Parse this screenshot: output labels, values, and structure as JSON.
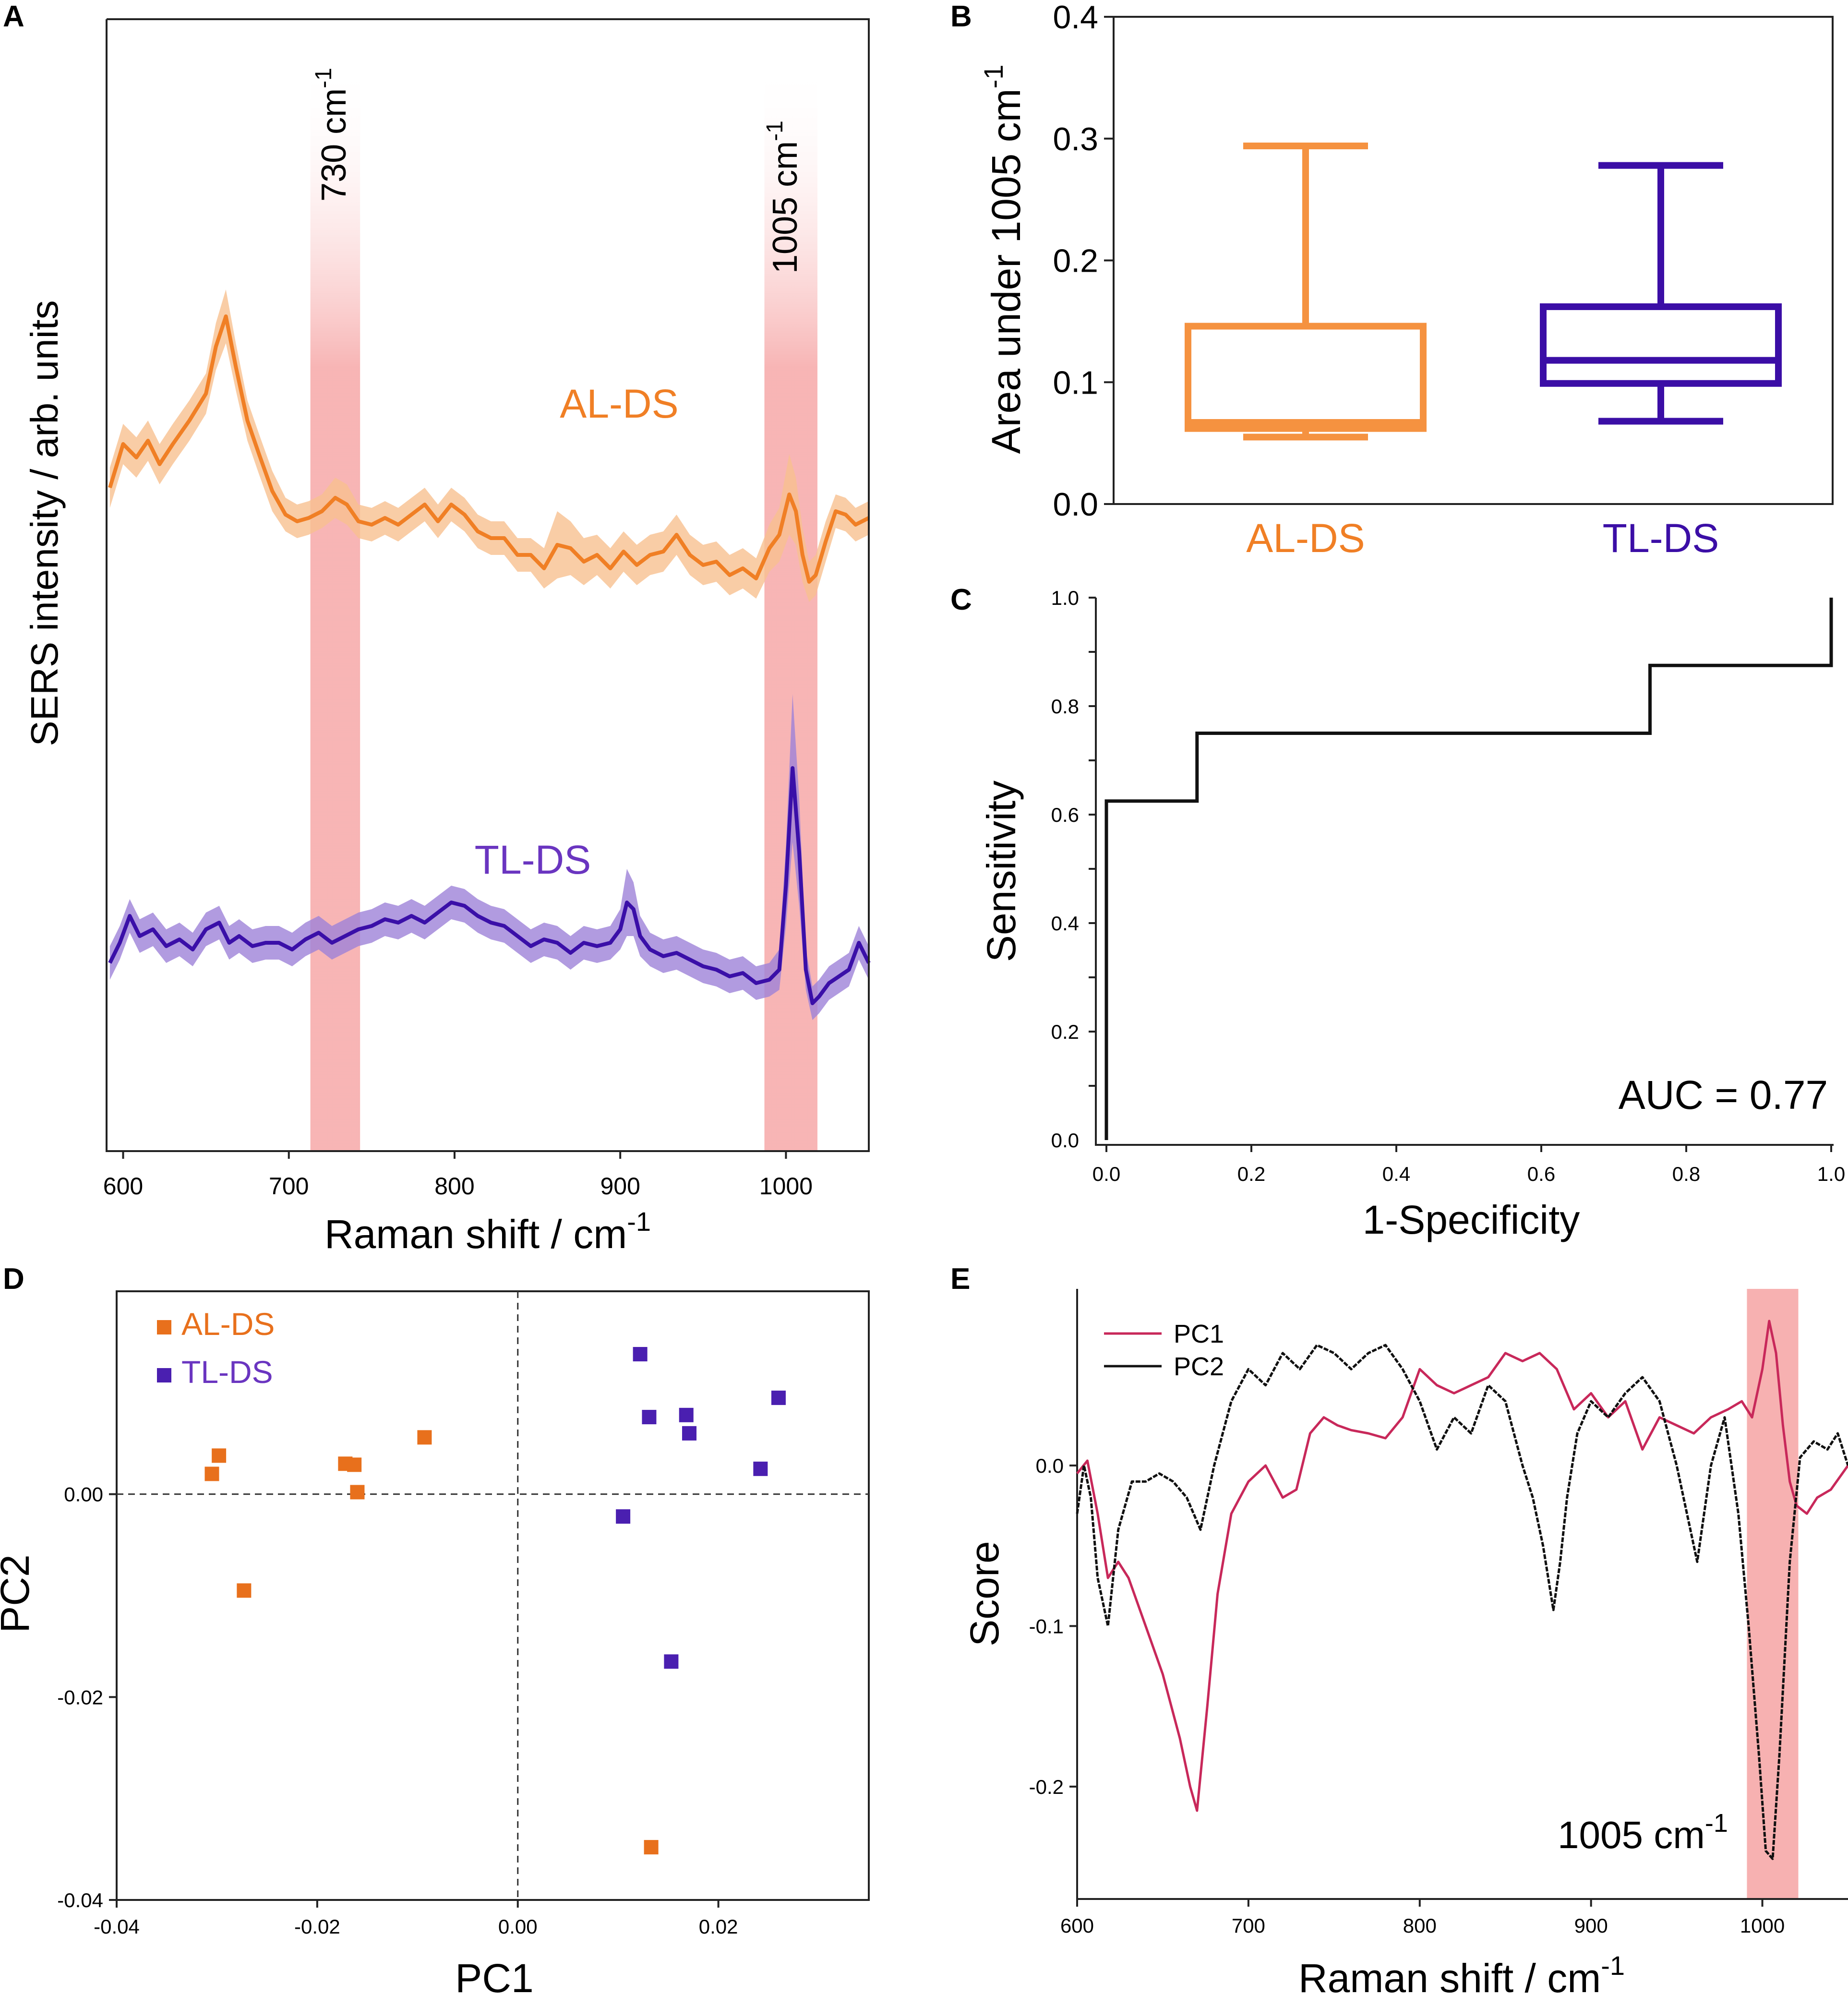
{
  "colors": {
    "al": "#f07f25",
    "al_fill": "#f8c090",
    "tl": "#3a0fa8",
    "tl_fill": "#9d82d8",
    "band": "#f6a8a8",
    "pc1": "#c8285a",
    "pc2": "#111111",
    "box_al": "#f59240",
    "box_tl": "#3b0ea6"
  },
  "chart_data": [
    {
      "panel": "A",
      "type": "line",
      "xlabel": "Raman shift / cm",
      "xlabel_sup": "-1",
      "ylabel": "SERS intensity / arb. units",
      "xlim": [
        590,
        1050
      ],
      "xticks": [
        600,
        700,
        800,
        900,
        1000
      ],
      "bands": [
        {
          "label": "730 cm",
          "sup": "-1",
          "range": [
            713,
            743
          ]
        },
        {
          "label": "1005 cm",
          "sup": "-1",
          "range": [
            987,
            1019
          ]
        }
      ],
      "series": [
        {
          "name": "AL-DS",
          "x": [
            592,
            600,
            608,
            615,
            622,
            630,
            640,
            650,
            656,
            662,
            668,
            675,
            682,
            690,
            698,
            705,
            712,
            720,
            728,
            735,
            742,
            750,
            758,
            766,
            774,
            782,
            790,
            798,
            806,
            814,
            822,
            830,
            838,
            846,
            854,
            862,
            870,
            878,
            886,
            894,
            902,
            910,
            918,
            926,
            934,
            942,
            950,
            958,
            966,
            974,
            982,
            990,
            996,
            1002,
            1006,
            1010,
            1014,
            1018,
            1024,
            1030,
            1036,
            1042,
            1050
          ],
          "y": [
            0.32,
            0.45,
            0.41,
            0.46,
            0.39,
            0.45,
            0.52,
            0.6,
            0.74,
            0.83,
            0.68,
            0.52,
            0.42,
            0.31,
            0.24,
            0.22,
            0.23,
            0.25,
            0.29,
            0.27,
            0.22,
            0.21,
            0.23,
            0.21,
            0.24,
            0.27,
            0.22,
            0.27,
            0.24,
            0.19,
            0.17,
            0.17,
            0.12,
            0.12,
            0.08,
            0.15,
            0.14,
            0.1,
            0.12,
            0.08,
            0.13,
            0.09,
            0.12,
            0.13,
            0.18,
            0.12,
            0.09,
            0.1,
            0.06,
            0.08,
            0.05,
            0.14,
            0.18,
            0.3,
            0.25,
            0.12,
            0.04,
            0.06,
            0.16,
            0.25,
            0.24,
            0.21,
            0.23
          ],
          "band_half": [
            0.06,
            0.06,
            0.06,
            0.06,
            0.06,
            0.06,
            0.06,
            0.06,
            0.07,
            0.08,
            0.07,
            0.06,
            0.06,
            0.06,
            0.05,
            0.05,
            0.05,
            0.05,
            0.06,
            0.06,
            0.05,
            0.05,
            0.05,
            0.05,
            0.05,
            0.05,
            0.05,
            0.05,
            0.05,
            0.05,
            0.05,
            0.05,
            0.05,
            0.05,
            0.06,
            0.1,
            0.08,
            0.07,
            0.06,
            0.06,
            0.06,
            0.06,
            0.06,
            0.06,
            0.06,
            0.06,
            0.06,
            0.06,
            0.06,
            0.06,
            0.06,
            0.07,
            0.08,
            0.12,
            0.1,
            0.08,
            0.06,
            0.06,
            0.06,
            0.05,
            0.05,
            0.05,
            0.05
          ]
        },
        {
          "name": "TL-DS",
          "x": [
            592,
            598,
            604,
            610,
            618,
            626,
            634,
            642,
            650,
            658,
            664,
            670,
            678,
            686,
            694,
            702,
            710,
            718,
            726,
            734,
            742,
            750,
            758,
            766,
            774,
            782,
            790,
            798,
            806,
            814,
            822,
            830,
            838,
            846,
            854,
            862,
            870,
            878,
            886,
            894,
            900,
            904,
            908,
            912,
            918,
            926,
            934,
            942,
            950,
            958,
            966,
            974,
            982,
            990,
            996,
            1000,
            1004,
            1008,
            1012,
            1016,
            1020,
            1026,
            1032,
            1038,
            1044,
            1050
          ],
          "y": [
            -0.78,
            -0.72,
            -0.64,
            -0.7,
            -0.68,
            -0.73,
            -0.71,
            -0.74,
            -0.68,
            -0.66,
            -0.72,
            -0.7,
            -0.73,
            -0.72,
            -0.72,
            -0.74,
            -0.71,
            -0.69,
            -0.72,
            -0.7,
            -0.68,
            -0.67,
            -0.65,
            -0.66,
            -0.64,
            -0.66,
            -0.63,
            -0.6,
            -0.61,
            -0.64,
            -0.66,
            -0.67,
            -0.7,
            -0.73,
            -0.71,
            -0.72,
            -0.75,
            -0.72,
            -0.73,
            -0.72,
            -0.68,
            -0.6,
            -0.62,
            -0.7,
            -0.74,
            -0.76,
            -0.75,
            -0.77,
            -0.79,
            -0.8,
            -0.82,
            -0.81,
            -0.84,
            -0.83,
            -0.8,
            -0.55,
            -0.2,
            -0.45,
            -0.8,
            -0.9,
            -0.88,
            -0.84,
            -0.82,
            -0.8,
            -0.72,
            -0.78
          ],
          "band_half": [
            0.05,
            0.05,
            0.05,
            0.05,
            0.05,
            0.05,
            0.05,
            0.05,
            0.05,
            0.05,
            0.05,
            0.05,
            0.05,
            0.05,
            0.05,
            0.05,
            0.05,
            0.05,
            0.05,
            0.05,
            0.05,
            0.05,
            0.05,
            0.05,
            0.05,
            0.05,
            0.05,
            0.05,
            0.05,
            0.05,
            0.05,
            0.05,
            0.05,
            0.05,
            0.05,
            0.05,
            0.05,
            0.05,
            0.05,
            0.05,
            0.06,
            0.1,
            0.08,
            0.06,
            0.05,
            0.05,
            0.05,
            0.05,
            0.05,
            0.05,
            0.05,
            0.05,
            0.05,
            0.05,
            0.06,
            0.12,
            0.22,
            0.16,
            0.06,
            0.05,
            0.05,
            0.05,
            0.05,
            0.05,
            0.05,
            0.05
          ]
        }
      ]
    },
    {
      "panel": "B",
      "type": "box",
      "ylabel": "Area under 1005 cm",
      "ylabel_sup": "-1",
      "ylim": [
        0,
        0.4
      ],
      "yticks": [
        "0.0",
        "0.1",
        "0.2",
        "0.3",
        "0.4"
      ],
      "boxes": [
        {
          "name": "AL-DS",
          "min": 0.055,
          "q1": 0.062,
          "median": 0.067,
          "q3": 0.146,
          "max": 0.294
        },
        {
          "name": "TL-DS",
          "min": 0.068,
          "q1": 0.099,
          "median": 0.118,
          "q3": 0.162,
          "max": 0.278
        }
      ]
    },
    {
      "panel": "C",
      "type": "line",
      "xlabel": "1-Specificity",
      "ylabel": "Sensitivity",
      "xlim": [
        0,
        1
      ],
      "ylim": [
        0,
        1
      ],
      "xticks": [
        "0.0",
        "0.2",
        "0.4",
        "0.6",
        "0.8",
        "1.0"
      ],
      "yticks": [
        "0.0",
        "0.2",
        "0.4",
        "0.6",
        "0.8",
        "1.0"
      ],
      "roc_x": [
        0,
        0,
        0.125,
        0.125,
        0.75,
        0.75,
        1.0,
        1.0
      ],
      "roc_y": [
        0,
        0.625,
        0.625,
        0.75,
        0.75,
        0.875,
        0.875,
        1.0
      ],
      "annotation": "AUC = 0.77"
    },
    {
      "panel": "D",
      "type": "scatter",
      "xlabel": "PC1",
      "ylabel": "PC2",
      "xlim": [
        -0.04,
        0.035
      ],
      "ylim": [
        -0.04,
        0.02
      ],
      "xticks": [
        "-0.04",
        "-0.02",
        "0.00",
        "0.02"
      ],
      "yticks": [
        "-0.04",
        "-0.02",
        "0.00"
      ],
      "series": [
        {
          "name": "AL-DS",
          "x": [
            -0.0305,
            -0.0298,
            -0.0273,
            -0.0172,
            -0.0163,
            -0.016,
            -0.0093,
            0.0133
          ],
          "y": [
            0.002,
            0.0038,
            -0.0095,
            0.003,
            0.0029,
            0.0002,
            0.0056,
            -0.0348
          ]
        },
        {
          "name": "TL-DS",
          "x": [
            0.0122,
            0.0131,
            0.0168,
            0.0171,
            0.026,
            0.0242,
            0.0105,
            0.0153
          ],
          "y": [
            0.0138,
            0.0076,
            0.0078,
            0.006,
            0.0095,
            0.0025,
            -0.0022,
            -0.0165
          ]
        }
      ]
    },
    {
      "panel": "E",
      "type": "line",
      "xlabel": "Raman shift / cm",
      "xlabel_sup": "-1",
      "ylabel": "Score",
      "xlim": [
        600,
        1050
      ],
      "ylim": [
        -0.27,
        0.11
      ],
      "xticks": [
        "600",
        "700",
        "800",
        "900",
        "1000"
      ],
      "yticks": [
        "0.0",
        "-0.1",
        "-0.2"
      ],
      "ytick_values": [
        0.0,
        -0.1,
        -0.2
      ],
      "band": {
        "label": "1005 cm",
        "sup": "-1",
        "range": [
          991,
          1021
        ]
      },
      "series": [
        {
          "name": "PC1",
          "x": [
            600,
            606,
            612,
            618,
            624,
            630,
            640,
            650,
            660,
            666,
            670,
            676,
            682,
            690,
            700,
            710,
            720,
            728,
            736,
            744,
            752,
            760,
            770,
            780,
            790,
            800,
            810,
            820,
            830,
            840,
            850,
            860,
            870,
            880,
            890,
            900,
            910,
            920,
            930,
            940,
            950,
            960,
            970,
            980,
            988,
            994,
            1000,
            1004,
            1008,
            1012,
            1016,
            1020,
            1026,
            1032,
            1040,
            1050
          ],
          "y": [
            -0.005,
            0.003,
            -0.03,
            -0.07,
            -0.06,
            -0.07,
            -0.1,
            -0.13,
            -0.17,
            -0.2,
            -0.215,
            -0.15,
            -0.08,
            -0.03,
            -0.01,
            0.0,
            -0.02,
            -0.015,
            0.02,
            0.03,
            0.025,
            0.022,
            0.02,
            0.017,
            0.03,
            0.06,
            0.05,
            0.045,
            0.05,
            0.055,
            0.07,
            0.065,
            0.07,
            0.06,
            0.035,
            0.045,
            0.03,
            0.04,
            0.01,
            0.03,
            0.025,
            0.02,
            0.03,
            0.035,
            0.04,
            0.03,
            0.06,
            0.09,
            0.07,
            0.025,
            -0.01,
            -0.025,
            -0.03,
            -0.02,
            -0.015,
            0.0
          ]
        },
        {
          "name": "PC2",
          "x": [
            600,
            604,
            608,
            612,
            618,
            624,
            632,
            640,
            648,
            656,
            664,
            672,
            680,
            690,
            700,
            710,
            720,
            730,
            740,
            750,
            760,
            770,
            780,
            790,
            800,
            810,
            820,
            830,
            840,
            850,
            860,
            866,
            872,
            878,
            882,
            886,
            892,
            900,
            910,
            920,
            930,
            940,
            950,
            956,
            962,
            970,
            978,
            986,
            992,
            998,
            1002,
            1006,
            1010,
            1016,
            1022,
            1030,
            1038,
            1044,
            1050
          ],
          "y": [
            -0.03,
            0.0,
            -0.02,
            -0.07,
            -0.1,
            -0.04,
            -0.01,
            -0.01,
            -0.005,
            -0.01,
            -0.02,
            -0.04,
            0.0,
            0.04,
            0.06,
            0.05,
            0.07,
            0.06,
            0.075,
            0.07,
            0.06,
            0.07,
            0.075,
            0.06,
            0.04,
            0.01,
            0.03,
            0.02,
            0.05,
            0.04,
            0.0,
            -0.02,
            -0.05,
            -0.09,
            -0.06,
            -0.02,
            0.02,
            0.04,
            0.03,
            0.045,
            0.055,
            0.04,
            0.0,
            -0.03,
            -0.06,
            0.0,
            0.03,
            -0.03,
            -0.1,
            -0.18,
            -0.24,
            -0.245,
            -0.18,
            -0.06,
            0.005,
            0.015,
            0.01,
            0.02,
            0.0
          ]
        }
      ]
    }
  ],
  "panel_letters": {
    "a": "A",
    "b": "B",
    "c": "C",
    "d": "D",
    "e": "E"
  },
  "labels": {
    "a_al": "AL-DS",
    "a_tl": "TL-DS",
    "a_band1": "730 cm",
    "a_band1_sup": "-1",
    "a_band2": "1005 cm",
    "a_band2_sup": "-1",
    "b_cat1": "AL-DS",
    "b_cat2": "TL-DS",
    "d_leg1": "AL-DS",
    "d_leg2": "TL-DS",
    "e_leg1": "PC1",
    "e_leg2": "PC2",
    "e_band": "1005 cm",
    "e_band_sup": "-1"
  }
}
